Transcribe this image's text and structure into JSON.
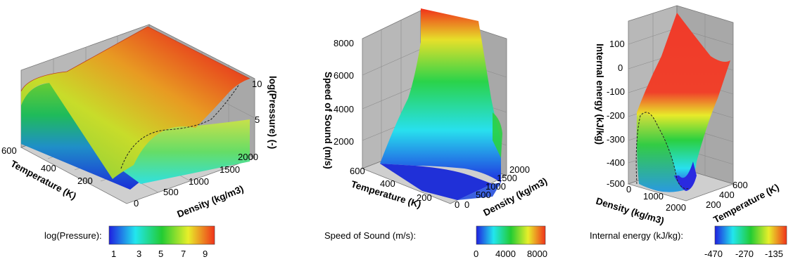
{
  "chart_data": [
    {
      "type": "surface",
      "zlabel": "log(Pressure) (-)",
      "xlabel": "Temperature (K)",
      "ylabel": "Density (kg/m3)",
      "x_ticks": [
        "600",
        "400",
        "200"
      ],
      "y_ticks": [
        "0",
        "500",
        "1000",
        "1500",
        "2000"
      ],
      "z_ticks": [
        "5",
        "10"
      ],
      "colorbar": {
        "title": "log(Pressure):",
        "ticks": [
          "1",
          "3",
          "5",
          "7",
          "9"
        ],
        "range": [
          0,
          10
        ]
      }
    },
    {
      "type": "surface",
      "zlabel": "Speed of Sound (m/s)",
      "xlabel": "Temperature (K)",
      "ylabel": "Density (kg/m3)",
      "x_ticks": [
        "600",
        "400",
        "200",
        "0"
      ],
      "y_ticks": [
        "0",
        "500",
        "1000",
        "1500",
        "2000"
      ],
      "z_ticks": [
        "2000",
        "4000",
        "6000",
        "8000"
      ],
      "colorbar": {
        "title": "Speed of Sound (m/s):",
        "ticks": [
          "0",
          "4000",
          "8000"
        ],
        "range": [
          0,
          8000
        ]
      }
    },
    {
      "type": "surface",
      "zlabel": "Internal energy (kJ/kg)",
      "xlabel": "Density (kg/m3)",
      "ylabel": "Temperature (K)",
      "x_ticks": [
        "0",
        "1000",
        "2000"
      ],
      "y_ticks": [
        "200",
        "400",
        "600"
      ],
      "z_ticks": [
        "-500",
        "-400",
        "-300",
        "-200",
        "-100",
        "0",
        "100"
      ],
      "colorbar": {
        "title": "Internal energy (kJ/kg):",
        "ticks": [
          "-470",
          "-270",
          "-135"
        ],
        "range": [
          -470,
          -135
        ]
      }
    }
  ],
  "colors": {
    "blue": "#1f2de0",
    "cyan": "#27e8ee",
    "green": "#22cc33",
    "yellow": "#e8ee2a",
    "red": "#f0331a"
  }
}
